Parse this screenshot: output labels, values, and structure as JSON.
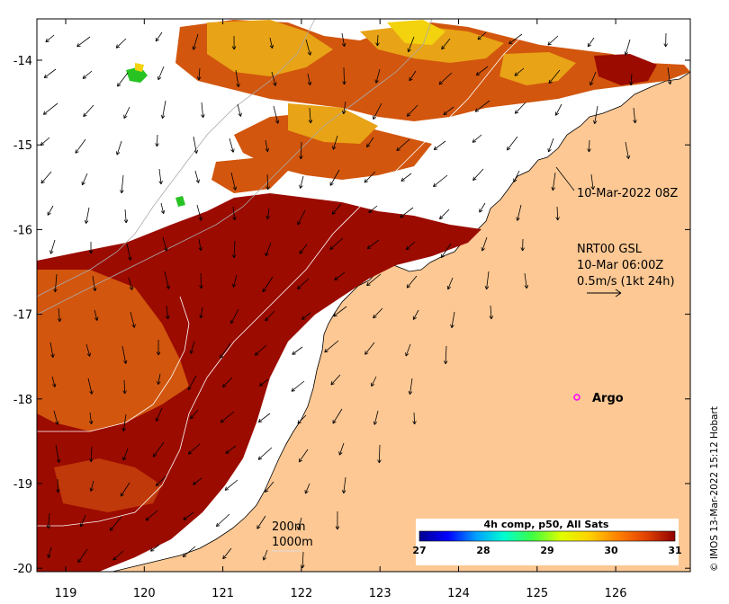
{
  "map": {
    "x_ticks": [
      "119",
      "120",
      "121",
      "122",
      "123",
      "124",
      "125",
      "126"
    ],
    "y_ticks": [
      "-14",
      "-15",
      "-16",
      "-17",
      "-18",
      "-19",
      "-20"
    ],
    "colors": {
      "land": "#fdc894",
      "no_data": "#ffffff",
      "sst_hot": "#9b0b00",
      "sst_warm": "#d2560e",
      "sst_mid": "#e8a316",
      "sst_cool": "#f3d20e",
      "sst_green": "#27c323",
      "argo": "#ff00ff"
    }
  },
  "annotations": {
    "pass_time": "10-Mar-2022 08Z",
    "current_line1": "NRT00 GSL",
    "current_line2": "10-Mar 06:00Z",
    "current_line3": "0.5m/s (1kt 24h)",
    "argo_label": "Argo",
    "isobath_200": "200m",
    "isobath_1000": "1000m"
  },
  "colorbar": {
    "title": "4h comp, p50, All Sats",
    "ticks": [
      "27",
      "28",
      "29",
      "30",
      "31"
    ],
    "stops": [
      "#000090",
      "#0000ff",
      "#00a0ff",
      "#00ffd0",
      "#40ff40",
      "#e0ff00",
      "#ffd000",
      "#ff8000",
      "#e04000",
      "#900000"
    ]
  },
  "credit": "© IMOS 13-Mar-2022 15:12 Hobart"
}
